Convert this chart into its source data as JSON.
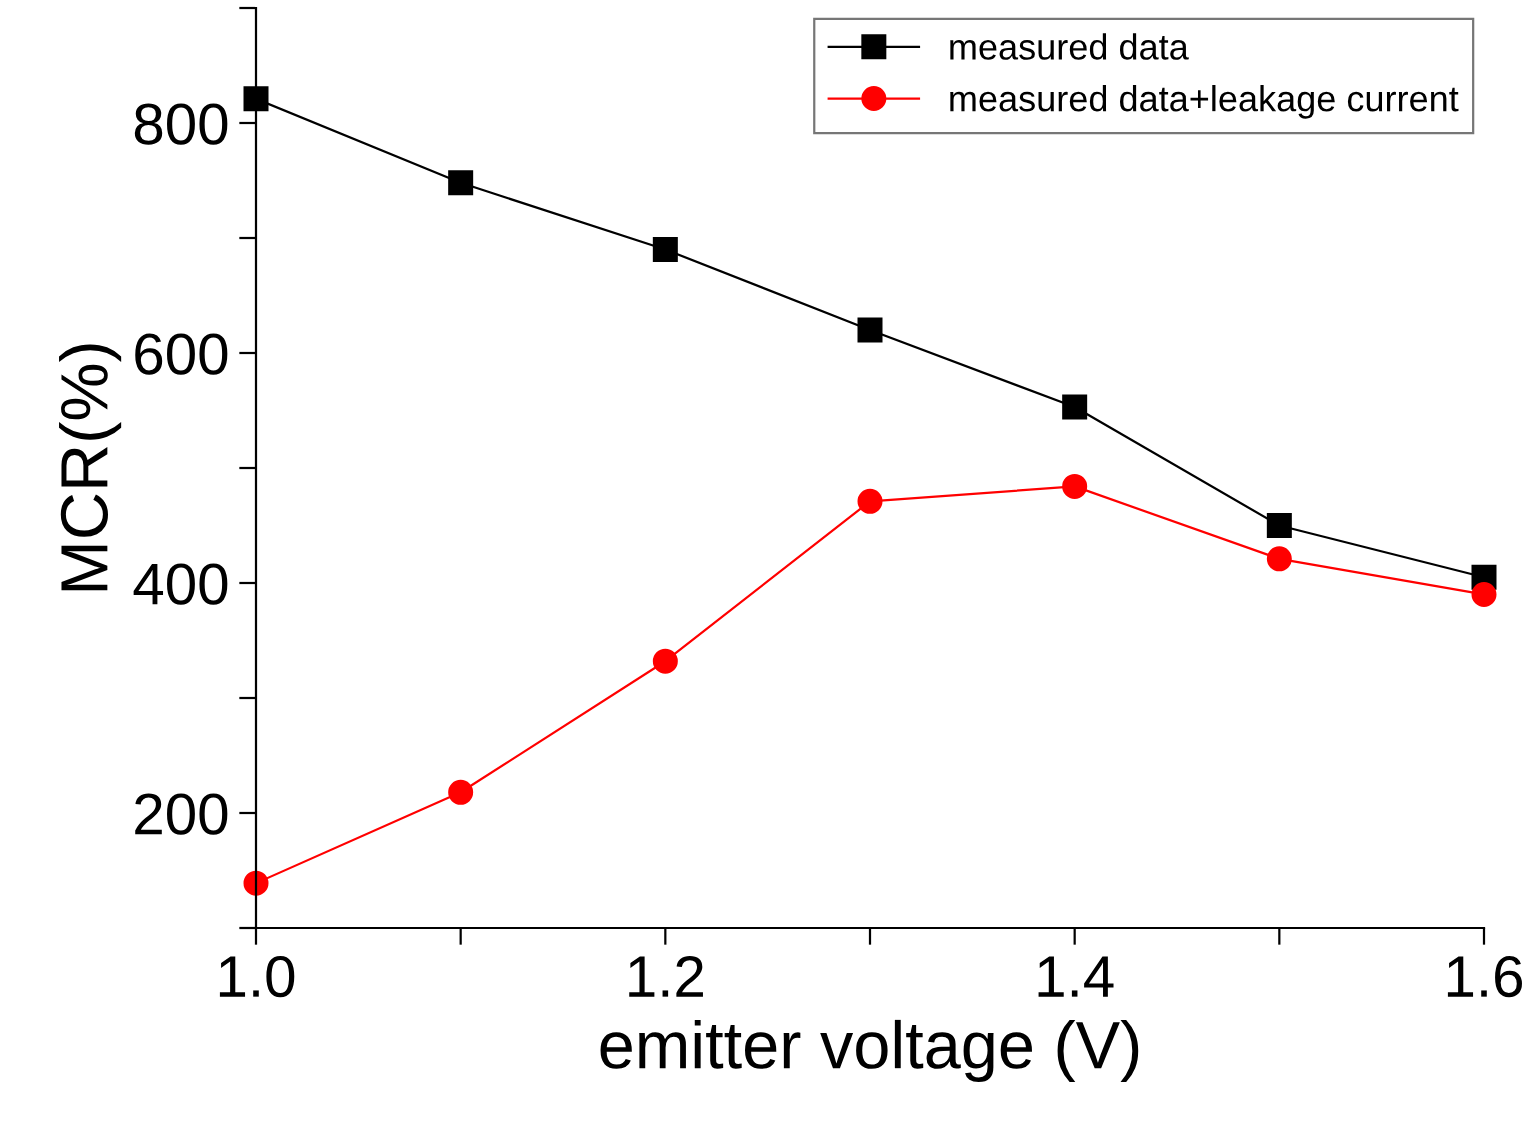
{
  "chart_data": {
    "type": "line",
    "xlabel": "emitter voltage (V)",
    "ylabel": "MCR(%)",
    "x": [
      1.0,
      1.1,
      1.2,
      1.3,
      1.4,
      1.5,
      1.6
    ],
    "series": [
      {
        "name": "measured data",
        "color": "#000000",
        "marker": "square",
        "values": [
          821,
          748,
          690,
          620,
          553,
          450,
          405
        ]
      },
      {
        "name": "measured data+leakage current",
        "color": "#ff0000",
        "marker": "circle",
        "values": [
          139,
          218,
          332,
          471,
          484,
          421,
          390
        ]
      }
    ],
    "xlim": [
      1.0,
      1.6
    ],
    "ylim": [
      100,
      900
    ],
    "xticks": [
      {
        "value": 1.0,
        "label": "1.0"
      },
      {
        "value": 1.1,
        "label": null
      },
      {
        "value": 1.2,
        "label": "1.2"
      },
      {
        "value": 1.3,
        "label": null
      },
      {
        "value": 1.4,
        "label": "1.4"
      },
      {
        "value": 1.5,
        "label": null
      },
      {
        "value": 1.6,
        "label": "1.6"
      }
    ],
    "yticks": [
      {
        "value": 100,
        "label": null
      },
      200,
      {
        "value": 300,
        "label": null
      },
      400,
      {
        "value": 500,
        "label": null
      },
      600,
      {
        "value": 700,
        "label": null
      },
      800,
      {
        "value": 900,
        "label": null
      }
    ],
    "legend": "top right",
    "grid": false,
    "line_style": "solid"
  }
}
